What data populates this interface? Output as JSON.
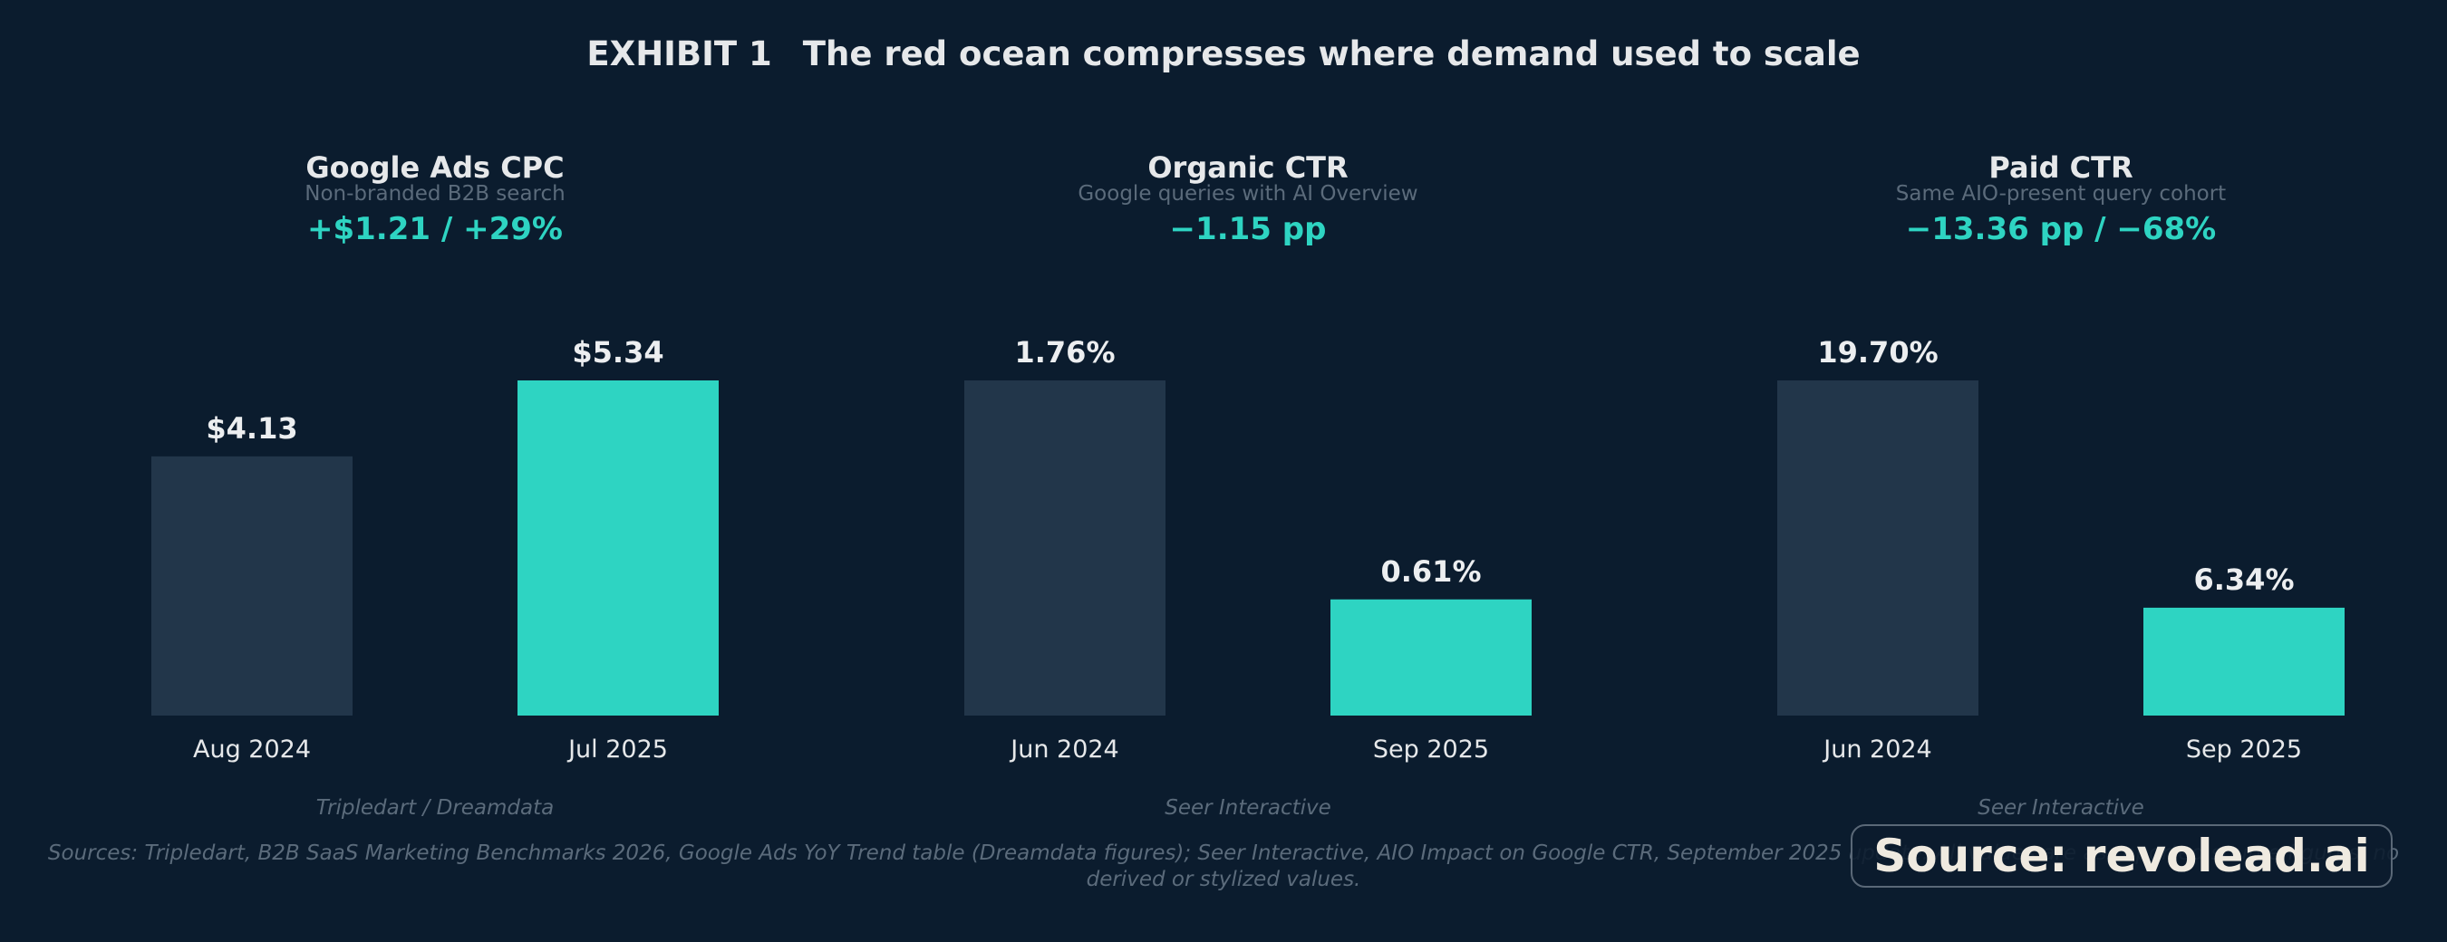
{
  "exhibit": {
    "label": "EXHIBIT 1",
    "title": "The red ocean compresses where demand used to scale"
  },
  "colors": {
    "background": "#0b1c2e",
    "before_bar": "#22364a",
    "after_bar": "#2ed4c2",
    "accent": "#2ed4c2",
    "subtitle": "#5b6b7b"
  },
  "chart_data": [
    {
      "type": "bar",
      "title": "Google Ads CPC",
      "subtitle": "Non-branded B2B search",
      "headline_change": "+$1.21 / +29%",
      "categories": [
        "Aug 2024",
        "Jul 2025"
      ],
      "values": [
        4.13,
        5.34
      ],
      "value_labels": [
        "$4.13",
        "$5.34"
      ],
      "source": "Tripledart / Dreamdata"
    },
    {
      "type": "bar",
      "title": "Organic CTR",
      "subtitle": "Google queries with AI Overview",
      "headline_change": "−1.15 pp",
      "categories": [
        "Jun 2024",
        "Sep 2025"
      ],
      "values": [
        1.76,
        0.61
      ],
      "value_labels": [
        "1.76%",
        "0.61%"
      ],
      "source": "Seer Interactive"
    },
    {
      "type": "bar",
      "title": "Paid CTR",
      "subtitle": "Same AIO-present query cohort",
      "headline_change": "−13.36 pp / −68%",
      "categories": [
        "Jun 2024",
        "Sep 2025"
      ],
      "values": [
        19.7,
        6.34
      ],
      "value_labels": [
        "19.70%",
        "6.34%"
      ],
      "source": "Seer Interactive"
    }
  ],
  "footnote": "Sources: Tripledart, B2B SaaS Marketing Benchmarks 2026, Google Ads YoY Trend table (Dreamdata figures); Seer Interactive, AIO Impact on Google CTR, September 2025 update. All values are as-reported source figures; no derived or stylized values.",
  "badge": "Source: revolead.ai"
}
